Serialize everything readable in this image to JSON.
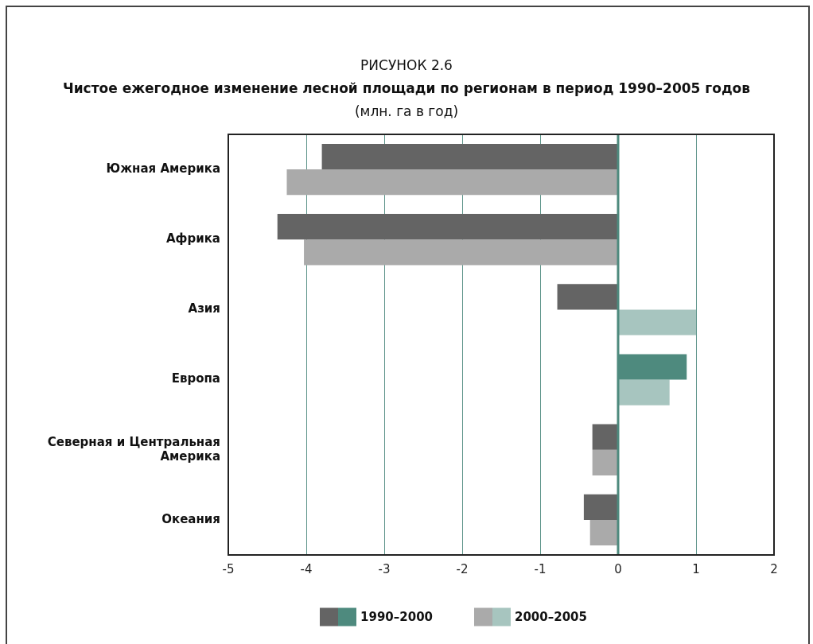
{
  "chart_data": {
    "type": "bar",
    "orientation": "horizontal",
    "annotations": [
      "РИСУНОК 2.6"
    ],
    "title": "Чистое ежегодное изменение лесной площади по регионам в период 1990–2005 годов",
    "subtitle": "(млн. га в год)",
    "categories": [
      "Южная Америка",
      "Африка",
      "Азия",
      "Европа",
      "Северная и Центральная Америка",
      "Океания"
    ],
    "series": [
      {
        "name": "1990–2000",
        "values": [
          -3.8,
          -4.37,
          -0.78,
          0.88,
          -0.33,
          -0.44
        ],
        "colors": [
          "#646464",
          "#646464",
          "#646464",
          "#4e8a7e",
          "#646464",
          "#646464"
        ]
      },
      {
        "name": "2000–2005",
        "values": [
          -4.25,
          -4.03,
          1.0,
          0.66,
          -0.33,
          -0.36
        ],
        "colors": [
          "#aaaaaa",
          "#aaaaaa",
          "#a7c5bf",
          "#a7c5bf",
          "#aaaaaa",
          "#aaaaaa"
        ]
      }
    ],
    "xlim": [
      -5,
      2
    ],
    "xticks": [
      -5,
      -4,
      -3,
      -2,
      -1,
      0,
      1,
      2
    ],
    "ref_lines": [
      {
        "axis": "x",
        "value": 0,
        "color": "#4e8a7e"
      }
    ],
    "grid": "x",
    "legend": "bottom"
  }
}
